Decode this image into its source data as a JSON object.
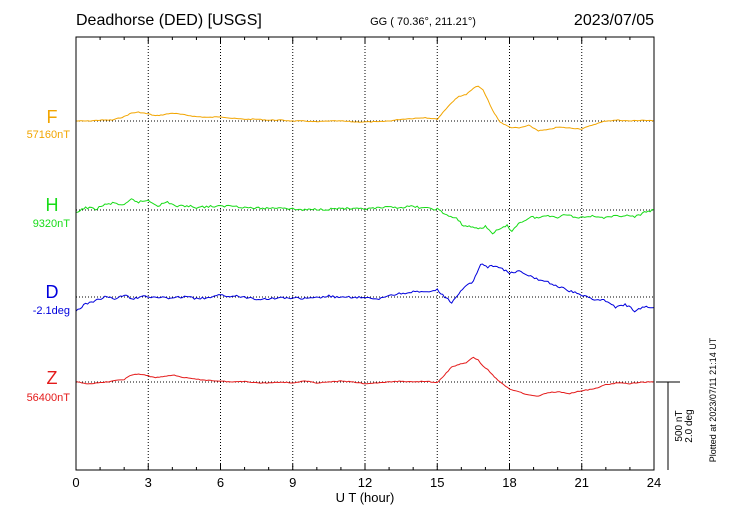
{
  "chart_data": {
    "type": "line",
    "title": "Deadhorse (DED)  [USGS]",
    "subtitle": "GG ( 70.36°, 211.21°)",
    "date": "2023/07/05",
    "xlabel": "U T (hour)",
    "xlim": [
      0,
      24
    ],
    "xticks": [
      0,
      3,
      6,
      9,
      12,
      15,
      18,
      21,
      24
    ],
    "x_tick_labels": [
      "0",
      "3",
      "6",
      "9",
      "12",
      "15",
      "18",
      "21",
      "24"
    ],
    "grid": true,
    "scale_bar": {
      "line1": "500 nT",
      "line2": "2.0 deg"
    },
    "footer": "Plotted at 2023/07/11 21:14 UT",
    "series_units": "nT (D in deg); values are deviations from the listed baseline",
    "series": [
      {
        "name": "F",
        "baseline_label": "57160nT",
        "color": "#f2a500",
        "x": [
          0,
          0.5,
          1,
          1.5,
          2,
          2.3,
          2.6,
          3,
          3.3,
          3.6,
          4,
          4.5,
          5,
          5.5,
          6,
          6.5,
          7,
          7.5,
          8,
          8.5,
          9,
          9.5,
          10,
          10.5,
          11,
          11.5,
          12,
          12.5,
          13,
          13.5,
          14,
          14.5,
          15,
          15.3,
          15.6,
          15.9,
          16.2,
          16.5,
          16.7,
          16.9,
          17.1,
          17.3,
          17.6,
          18,
          18.4,
          18.8,
          19.2,
          19.6,
          20,
          20.5,
          21,
          21.5,
          22,
          22.5,
          23,
          23.5,
          24
        ],
        "values": [
          0,
          0,
          5,
          5,
          25,
          45,
          50,
          40,
          30,
          35,
          45,
          35,
          25,
          20,
          25,
          15,
          10,
          10,
          5,
          5,
          0,
          0,
          -5,
          0,
          0,
          -5,
          -5,
          -5,
          0,
          10,
          15,
          20,
          10,
          60,
          105,
          140,
          150,
          185,
          200,
          175,
          120,
          60,
          -5,
          -35,
          -40,
          -25,
          -55,
          -50,
          -35,
          -40,
          -45,
          -20,
          0,
          5,
          0,
          5,
          0
        ]
      },
      {
        "name": "H",
        "baseline_label": "9320nT",
        "color": "#17dc17",
        "x": [
          0,
          0.4,
          0.8,
          1.2,
          1.6,
          2,
          2.3,
          2.6,
          3,
          3.4,
          3.8,
          4.2,
          4.6,
          5,
          5.5,
          6,
          6.5,
          7,
          7.5,
          8,
          8.5,
          9,
          9.5,
          10,
          10.5,
          11,
          11.5,
          12,
          12.5,
          13,
          13.5,
          14,
          14.5,
          15,
          15.4,
          15.8,
          16.1,
          16.4,
          16.7,
          17,
          17.3,
          17.6,
          17.9,
          18.1,
          18.3,
          18.6,
          18.9,
          19.2,
          19.6,
          20,
          20.4,
          20.8,
          21.2,
          21.6,
          22,
          22.4,
          22.8,
          23.2,
          23.6,
          24
        ],
        "values": [
          -20,
          15,
          5,
          30,
          40,
          25,
          60,
          45,
          55,
          25,
          45,
          20,
          25,
          15,
          20,
          20,
          25,
          15,
          10,
          10,
          15,
          5,
          0,
          5,
          5,
          10,
          5,
          5,
          10,
          15,
          15,
          20,
          10,
          5,
          -30,
          -50,
          -90,
          -95,
          -105,
          -95,
          -130,
          -110,
          -90,
          -120,
          -85,
          -60,
          -40,
          -45,
          -30,
          -40,
          -25,
          -45,
          -35,
          -35,
          -45,
          -35,
          -30,
          -40,
          -15,
          0
        ]
      },
      {
        "name": "D",
        "baseline_label": "-2.1deg",
        "color": "#0000dd",
        "x": [
          0,
          0.4,
          0.8,
          1.2,
          1.6,
          2,
          2.4,
          2.8,
          3.2,
          3.6,
          4,
          4.5,
          5,
          5.5,
          6,
          6.5,
          7,
          7.5,
          8,
          8.5,
          9,
          9.5,
          10,
          10.5,
          11,
          11.5,
          12,
          12.5,
          13,
          13.5,
          14,
          14.5,
          15,
          15.3,
          15.6,
          15.9,
          16.2,
          16.5,
          16.8,
          17.1,
          17.4,
          17.7,
          18,
          18.4,
          18.8,
          19.2,
          19.6,
          20,
          20.4,
          20.8,
          21.2,
          21.6,
          22,
          22.4,
          22.8,
          23.2,
          23.6,
          24
        ],
        "values": [
          -80,
          -40,
          -20,
          0,
          -10,
          10,
          -10,
          10,
          -5,
          0,
          -10,
          5,
          -10,
          -5,
          10,
          5,
          0,
          -10,
          -10,
          -5,
          -5,
          -10,
          -5,
          5,
          -5,
          0,
          -5,
          -15,
          10,
          20,
          30,
          25,
          40,
          0,
          -30,
          20,
          60,
          90,
          190,
          170,
          180,
          160,
          135,
          145,
          120,
          100,
          85,
          60,
          40,
          20,
          0,
          -15,
          -20,
          -60,
          -40,
          -80,
          -55,
          -60
        ]
      },
      {
        "name": "Z",
        "baseline_label": "56400nT",
        "color": "#e41a1a",
        "x": [
          0,
          0.5,
          1,
          1.5,
          2,
          2.3,
          2.6,
          3,
          3.3,
          3.6,
          4,
          4.5,
          5,
          5.5,
          6,
          6.5,
          7,
          7.5,
          8,
          8.5,
          9,
          9.5,
          10,
          10.5,
          11,
          11.5,
          12,
          12.5,
          13,
          13.5,
          14,
          14.5,
          15,
          15.3,
          15.6,
          15.9,
          16.2,
          16.5,
          16.7,
          16.9,
          17.1,
          17.3,
          17.6,
          18,
          18.4,
          18.8,
          19.2,
          19.6,
          20,
          20.5,
          21,
          21.5,
          22,
          22.5,
          23,
          23.5,
          24
        ],
        "values": [
          0,
          -10,
          -5,
          5,
          15,
          40,
          45,
          35,
          25,
          30,
          40,
          25,
          15,
          10,
          5,
          0,
          5,
          -5,
          -5,
          0,
          -5,
          5,
          -5,
          0,
          5,
          0,
          -10,
          -5,
          0,
          5,
          0,
          5,
          -5,
          40,
          85,
          100,
          110,
          140,
          125,
          90,
          70,
          40,
          0,
          -40,
          -55,
          -75,
          -80,
          -60,
          -55,
          -65,
          -50,
          -40,
          -15,
          -5,
          -10,
          0,
          0
        ]
      }
    ]
  }
}
